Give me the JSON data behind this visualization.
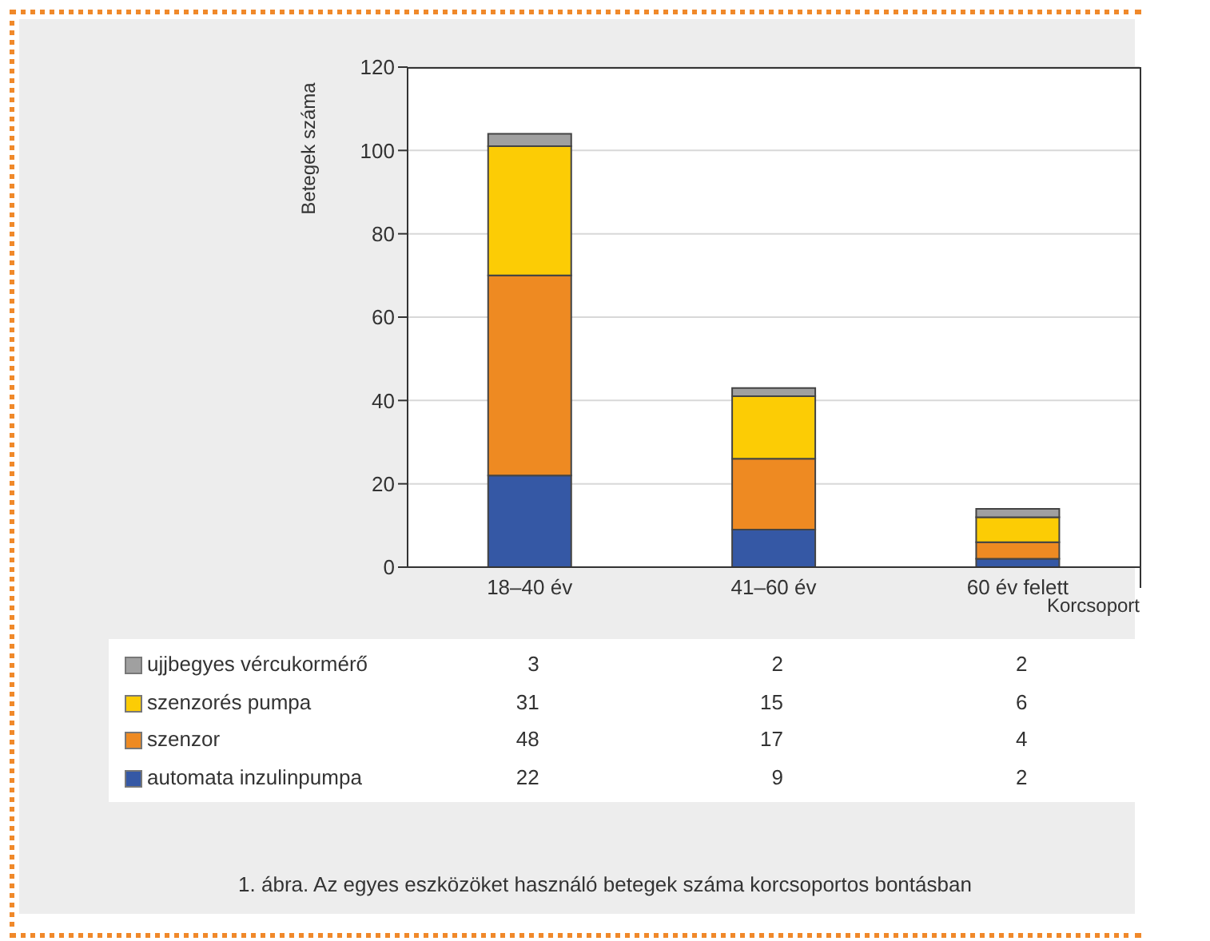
{
  "chart_data": {
    "type": "bar",
    "stacked": true,
    "ylabel": "Betegek száma",
    "xlabel": "Korcsoport",
    "categories": [
      "18–40 év",
      "41–60 év",
      "60 év felett"
    ],
    "series": [
      {
        "name": "automata inzulinpumpa",
        "color": "#3558a5",
        "values": [
          22,
          9,
          2
        ]
      },
      {
        "name": "szenzor",
        "color": "#ee8a22",
        "values": [
          48,
          17,
          4
        ]
      },
      {
        "name": "szenzorés pumpa",
        "color": "#fccc05",
        "values": [
          31,
          15,
          6
        ]
      },
      {
        "name": "ujjbegyes vércukormérő",
        "color": "#a0a0a0",
        "values": [
          3,
          2,
          2
        ]
      }
    ],
    "ylim": [
      0,
      120
    ],
    "yticks": [
      0,
      20,
      40,
      60,
      80,
      100,
      120
    ],
    "grid": "y",
    "legend": "bottom",
    "data_labels": true,
    "annotations": [
      "1. ábra. Az egyes eszközöket használó betegek száma korcsoportos bontásban"
    ]
  }
}
